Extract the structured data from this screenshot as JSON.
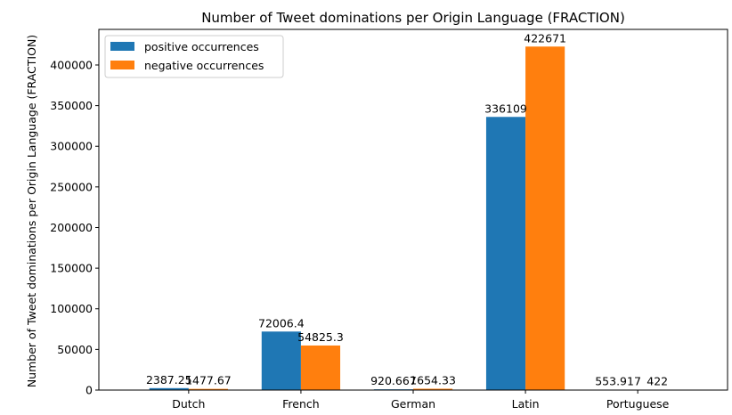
{
  "chart_data": {
    "type": "bar",
    "title": "Number of Tweet dominations per Origin Language (FRACTION)",
    "xlabel": "",
    "ylabel": "Number of Tweet dominations per Origin Language (FRACTION)",
    "categories": [
      "Dutch",
      "French",
      "German",
      "Latin",
      "Portuguese"
    ],
    "series": [
      {
        "name": "positive occurrences",
        "color": "#1f77b4",
        "values": [
          2387.25,
          72006.4,
          920.667,
          336109,
          553.917
        ],
        "labels": [
          "2387.25",
          "72006.4",
          "920.667",
          "336109",
          "553.917"
        ]
      },
      {
        "name": "negative occurrences",
        "color": "#ff7f0e",
        "values": [
          1477.67,
          54825.3,
          1654.33,
          422671,
          422
        ],
        "labels": [
          "1477.67",
          "54825.3",
          "1654.33",
          "422671",
          "422"
        ]
      }
    ],
    "ylim": [
      0,
      443805
    ],
    "yticks": [
      0,
      50000,
      100000,
      150000,
      200000,
      250000,
      300000,
      350000,
      400000
    ],
    "ytick_labels": [
      "0",
      "50000",
      "100000",
      "150000",
      "200000",
      "250000",
      "300000",
      "350000",
      "400000"
    ],
    "legend_position": "top-left",
    "grid": false
  }
}
